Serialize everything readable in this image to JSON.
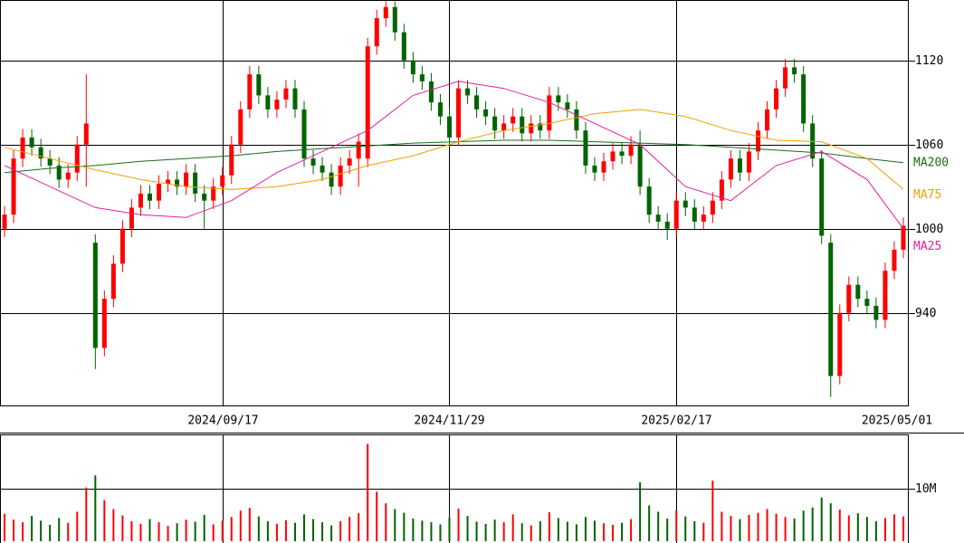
{
  "chart_data": [
    {
      "type": "candlestick",
      "categories": [
        null,
        null,
        null,
        null,
        null,
        null,
        null,
        null,
        null,
        null,
        null,
        null,
        null,
        null,
        null,
        null,
        null,
        null,
        null,
        null,
        null,
        null,
        null,
        null,
        "2024/09/17",
        null,
        null,
        null,
        null,
        null,
        null,
        null,
        null,
        null,
        null,
        null,
        null,
        null,
        null,
        null,
        null,
        null,
        null,
        null,
        null,
        null,
        null,
        null,
        null,
        "2024/11/29",
        null,
        null,
        null,
        null,
        null,
        null,
        null,
        null,
        null,
        null,
        null,
        null,
        null,
        null,
        null,
        null,
        null,
        null,
        null,
        null,
        null,
        null,
        null,
        null,
        "2025/02/17",
        null,
        null,
        null,
        null,
        null,
        null,
        null,
        null,
        null,
        null,
        null,
        null,
        null,
        null,
        null,
        null,
        null,
        null,
        null,
        null,
        null,
        null,
        null,
        null,
        "2025/05/01"
      ],
      "open": [
        1000,
        1010,
        1050,
        1065,
        1058,
        1050,
        1045,
        1035,
        1040,
        1060,
        990,
        915,
        950,
        975,
        1000,
        1015,
        1025,
        1020,
        1032,
        1035,
        1030,
        1040,
        1025,
        1020,
        1030,
        1038,
        1060,
        1085,
        1110,
        1095,
        1085,
        1092,
        1100,
        1085,
        1050,
        1045,
        1040,
        1030,
        1045,
        1050,
        1050,
        1130,
        1150,
        1158,
        1140,
        1120,
        1110,
        1105,
        1090,
        1080,
        1065,
        1100,
        1095,
        1085,
        1080,
        1070,
        1075,
        1080,
        1068,
        1075,
        1070,
        1095,
        1090,
        1085,
        1070,
        1045,
        1040,
        1048,
        1055,
        1052,
        1060,
        1030,
        1010,
        1005,
        1000,
        1020,
        1015,
        1005,
        1010,
        1020,
        1035,
        1050,
        1040,
        1055,
        1070,
        1085,
        1100,
        1115,
        1110,
        1075,
        1050,
        990,
        895,
        940,
        960,
        950,
        945,
        935,
        970,
        985
      ],
      "high": [
        1016,
        1056,
        1071,
        1071,
        1064,
        1056,
        1051,
        1046,
        1066,
        1110,
        996,
        956,
        981,
        1006,
        1021,
        1031,
        1031,
        1038,
        1041,
        1041,
        1046,
        1046,
        1031,
        1036,
        1044,
        1066,
        1091,
        1116,
        1116,
        1101,
        1098,
        1106,
        1106,
        1091,
        1056,
        1051,
        1046,
        1051,
        1056,
        1068,
        1136,
        1156,
        1162,
        1162,
        1146,
        1126,
        1116,
        1111,
        1096,
        1086,
        1106,
        1106,
        1101,
        1091,
        1086,
        1081,
        1086,
        1086,
        1081,
        1081,
        1101,
        1101,
        1096,
        1091,
        1076,
        1051,
        1054,
        1061,
        1061,
        1066,
        1070,
        1036,
        1016,
        1011,
        1026,
        1026,
        1021,
        1016,
        1026,
        1041,
        1056,
        1056,
        1061,
        1076,
        1091,
        1106,
        1121,
        1121,
        1116,
        1081,
        1056,
        996,
        946,
        966,
        966,
        956,
        951,
        976,
        991,
        1008
      ],
      "low": [
        994,
        1004,
        1044,
        1052,
        1044,
        1039,
        1029,
        1029,
        1034,
        1030,
        900,
        909,
        944,
        969,
        994,
        1009,
        1014,
        1014,
        1026,
        1024,
        1024,
        1019,
        1000,
        1014,
        1024,
        1032,
        1054,
        1079,
        1089,
        1079,
        1079,
        1086,
        1079,
        1044,
        1039,
        1034,
        1024,
        1024,
        1039,
        1030,
        1044,
        1124,
        1144,
        1134,
        1114,
        1104,
        1099,
        1084,
        1074,
        1059,
        1059,
        1089,
        1079,
        1074,
        1064,
        1064,
        1069,
        1062,
        1062,
        1064,
        1064,
        1084,
        1079,
        1064,
        1039,
        1034,
        1034,
        1042,
        1046,
        1046,
        1024,
        1004,
        999,
        992,
        994,
        1009,
        999,
        999,
        1004,
        1014,
        1029,
        1034,
        1034,
        1049,
        1064,
        1079,
        1094,
        1104,
        1069,
        1044,
        989,
        880,
        889,
        934,
        944,
        939,
        929,
        929,
        964,
        979
      ],
      "close": [
        1010,
        1050,
        1065,
        1058,
        1050,
        1045,
        1035,
        1040,
        1060,
        1075,
        915,
        950,
        975,
        1000,
        1015,
        1025,
        1020,
        1032,
        1035,
        1030,
        1040,
        1025,
        1020,
        1030,
        1038,
        1060,
        1085,
        1110,
        1095,
        1085,
        1092,
        1100,
        1085,
        1050,
        1045,
        1040,
        1030,
        1045,
        1050,
        1062,
        1130,
        1150,
        1158,
        1140,
        1120,
        1110,
        1105,
        1090,
        1080,
        1065,
        1100,
        1095,
        1085,
        1080,
        1070,
        1075,
        1080,
        1068,
        1075,
        1070,
        1095,
        1090,
        1085,
        1070,
        1045,
        1040,
        1048,
        1055,
        1052,
        1060,
        1030,
        1010,
        1005,
        1000,
        1020,
        1015,
        1005,
        1010,
        1020,
        1035,
        1050,
        1040,
        1055,
        1070,
        1085,
        1100,
        1115,
        1110,
        1075,
        1050,
        995,
        895,
        940,
        960,
        950,
        945,
        935,
        970,
        985,
        1002
      ],
      "up_color": "#ff0000",
      "down_color": "#006400",
      "ylim": [
        874,
        1163
      ],
      "yticks": [
        940,
        1000,
        1060,
        1120
      ],
      "grid": true,
      "series": [
        {
          "name": "MA200",
          "color": "#1a6b1a",
          "x": [
            0,
            5,
            10,
            15,
            20,
            25,
            30,
            35,
            40,
            45,
            50,
            55,
            60,
            65,
            70,
            75,
            80,
            85,
            90,
            95,
            99
          ],
          "values": [
            1040,
            1043,
            1045,
            1048,
            1050,
            1052,
            1055,
            1057,
            1059,
            1061,
            1062,
            1063,
            1063,
            1062,
            1061,
            1060,
            1058,
            1056,
            1054,
            1050,
            1047
          ]
        },
        {
          "name": "MA75",
          "color": "#f0a000",
          "x": [
            0,
            5,
            10,
            15,
            20,
            25,
            30,
            35,
            40,
            45,
            50,
            55,
            60,
            65,
            70,
            75,
            80,
            85,
            90,
            95,
            99
          ],
          "values": [
            1058,
            1050,
            1042,
            1035,
            1030,
            1028,
            1030,
            1035,
            1045,
            1052,
            1062,
            1070,
            1075,
            1082,
            1085,
            1080,
            1070,
            1063,
            1062,
            1050,
            1028
          ]
        },
        {
          "name": "MA25",
          "color": "#e020a0",
          "x": [
            0,
            5,
            10,
            15,
            20,
            25,
            30,
            35,
            40,
            45,
            50,
            55,
            60,
            65,
            70,
            75,
            80,
            85,
            90,
            95,
            99
          ],
          "values": [
            1045,
            1030,
            1015,
            1010,
            1008,
            1020,
            1040,
            1055,
            1070,
            1095,
            1105,
            1100,
            1090,
            1075,
            1060,
            1030,
            1020,
            1045,
            1055,
            1035,
            1000
          ]
        }
      ]
    },
    {
      "type": "bar",
      "values": [
        5200000,
        4100000,
        3600000,
        4800000,
        3900000,
        3100000,
        4400000,
        3500000,
        5600000,
        10200000,
        12500000,
        7800000,
        6100000,
        4900000,
        3800000,
        3300000,
        4200000,
        3600000,
        2900000,
        3400000,
        4100000,
        3700000,
        5000000,
        3200000,
        3900000,
        4600000,
        5800000,
        6300000,
        4700000,
        3800000,
        3300000,
        4000000,
        3500000,
        5100000,
        4200000,
        3600000,
        3000000,
        3800000,
        4600000,
        5300000,
        18500000,
        9400000,
        7200000,
        6100000,
        5400000,
        4300000,
        3900000,
        3600000,
        3200000,
        4500000,
        6200000,
        4800000,
        3700000,
        3300000,
        4100000,
        3600000,
        5100000,
        3400000,
        3000000,
        3800000,
        5500000,
        4400000,
        3700000,
        3200000,
        4600000,
        3900000,
        3400000,
        3100000,
        3500000,
        4200000,
        11200000,
        6800000,
        5600000,
        4300000,
        5900000,
        4700000,
        3800000,
        3500000,
        11500000,
        5600000,
        4800000,
        4200000,
        5000000,
        5400000,
        6100000,
        5200000,
        4600000,
        4300000,
        5800000,
        6400000,
        8300000,
        7200000,
        6000000,
        4900000,
        5300000,
        4600000,
        3800000,
        4400000,
        5100000,
        4700000
      ],
      "ylim": [
        0,
        20300000
      ],
      "yticks": [
        {
          "value": 10000000,
          "label": "10M"
        }
      ],
      "grid": true
    }
  ]
}
